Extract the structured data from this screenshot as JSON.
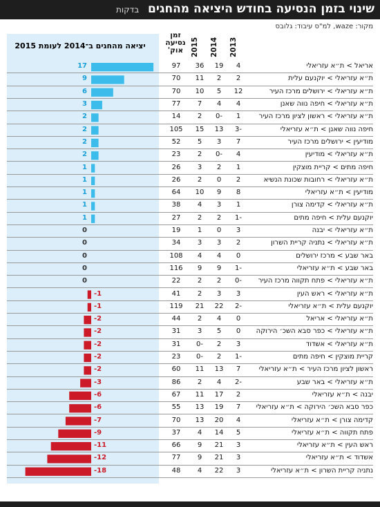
{
  "header": {
    "title": "שינוי בזמן הנסיעה בחודש היציאה מהחגים",
    "subtitle": "בדקות"
  },
  "source": "מקור: waze, למ\"ס  עיבוד: גלובס",
  "columns": {
    "y2013": "2013",
    "y2014": "2014",
    "y2015": "2015",
    "august": [
      "זמן",
      "נסיעה",
      "אוק'"
    ]
  },
  "colors": {
    "positive": "#3bbcea",
    "negative": "#cc1a28",
    "positive_text": "#1aa0d8",
    "negative_text": "#cc1a28",
    "panel": "#dbeefa"
  },
  "chart_data": {
    "type": "bar",
    "title": "יציאה מהחגים ב־2014 לעומת 2015",
    "orientation": "horizontal",
    "xlim": [
      -18,
      17
    ],
    "rows": [
      {
        "route": "אריאל > ת״א עזריאלי",
        "y2013": "4",
        "y2014": "19",
        "y2015": "36",
        "oct": "97",
        "change": 17
      },
      {
        "route": "ת״א עזריאלי > יוקנעם עלית",
        "y2013": "2",
        "y2014": "2",
        "y2015": "11",
        "oct": "70",
        "change": 9
      },
      {
        "route": "ת״א עזריאלי > ירושלים מרכז העיר",
        "y2013": "12",
        "y2014": "5",
        "y2015": "10",
        "oct": "70",
        "change": 6
      },
      {
        "route": "ת״א עזריאלי > חיפה נווה שאנן",
        "y2013": "4",
        "y2014": "4",
        "y2015": "7",
        "oct": "77",
        "change": 3
      },
      {
        "route": "ת״א עזריאלי > ראשון לציון מרכז העיר",
        "y2013": "1",
        "y2014": "0-",
        "y2015": "2",
        "oct": "14",
        "change": 2
      },
      {
        "route": "חיפה נווה שאנן > ת״א עזריאלי",
        "y2013": "3-",
        "y2014": "13",
        "y2015": "15",
        "oct": "105",
        "change": 2
      },
      {
        "route": "מודיעין > ירושלים מרכז העיר",
        "y2013": "7",
        "y2014": "3",
        "y2015": "5",
        "oct": "52",
        "change": 2
      },
      {
        "route": "ת״א עזריאלי > מודיעין",
        "y2013": "4",
        "y2014": "0-",
        "y2015": "2",
        "oct": "23",
        "change": 2
      },
      {
        "route": "חיפה מתים > קריית מוצקין",
        "y2013": "1",
        "y2014": "2",
        "y2015": "3",
        "oct": "26",
        "change": 1
      },
      {
        "route": "ת״א עזריאלי > רחובות שכונת הנשיא",
        "y2013": "2",
        "y2014": "0",
        "y2015": "2",
        "oct": "26",
        "change": 1
      },
      {
        "route": "מודיעין > ת״א עזריאלי",
        "y2013": "8",
        "y2014": "9",
        "y2015": "10",
        "oct": "64",
        "change": 1
      },
      {
        "route": "ת״א עזריאלי > קדימה צורן",
        "y2013": "1",
        "y2014": "3",
        "y2015": "4",
        "oct": "38",
        "change": 1
      },
      {
        "route": "יוקנעם עלית > חיפה מתים",
        "y2013": "1-",
        "y2014": "2",
        "y2015": "2",
        "oct": "27",
        "change": 1
      },
      {
        "route": "ת״א עזריאלי > יבנה",
        "y2013": "3",
        "y2014": "0",
        "y2015": "1",
        "oct": "19",
        "change": 0
      },
      {
        "route": "ת״א עזריאלי > נתניה קריית השרון",
        "y2013": "2",
        "y2014": "3",
        "y2015": "3",
        "oct": "34",
        "change": 0
      },
      {
        "route": "באר שבע > מרכז ירושלים",
        "y2013": "0",
        "y2014": "4",
        "y2015": "4",
        "oct": "108",
        "change": 0
      },
      {
        "route": "באר שבע > ת״א עזריאלי",
        "y2013": "1-",
        "y2014": "9",
        "y2015": "9",
        "oct": "116",
        "change": 0
      },
      {
        "route": "ת״א עזריאלי > פתח תקווה מרכז העיר",
        "y2013": "0-",
        "y2014": "2",
        "y2015": "2",
        "oct": "22",
        "change": 0
      },
      {
        "route": "ת״א עזריאלי > ראש העין",
        "y2013": "3",
        "y2014": "3",
        "y2015": "2",
        "oct": "41",
        "change": -1
      },
      {
        "route": "יוקנעם עלית > ת״א עזריאלי",
        "y2013": "2-",
        "y2014": "22",
        "y2015": "21",
        "oct": "119",
        "change": -1
      },
      {
        "route": "ת״א עזריאלי > אריאל",
        "y2013": "0",
        "y2014": "4",
        "y2015": "2",
        "oct": "44",
        "change": -2
      },
      {
        "route": "ת״א עזריאלי > כפר סבא השכ׳ הירוקה",
        "y2013": "0",
        "y2014": "5",
        "y2015": "3",
        "oct": "31",
        "change": -2
      },
      {
        "route": "ת״א עזריאלי > אשדוד",
        "y2013": "3",
        "y2014": "2",
        "y2015": "0-",
        "oct": "31",
        "change": -2
      },
      {
        "route": "קריית מוצקין > חיפה מתים",
        "y2013": "1-",
        "y2014": "2",
        "y2015": "0-",
        "oct": "23",
        "change": -2
      },
      {
        "route": "ראשון לציון מרכז העיר > ת״א עזריאלי",
        "y2013": "7",
        "y2014": "13",
        "y2015": "11",
        "oct": "60",
        "change": -2
      },
      {
        "route": "ת״א עזריאלי > באר שבע",
        "y2013": "2-",
        "y2014": "4",
        "y2015": "2",
        "oct": "86",
        "change": -3
      },
      {
        "route": "יבנה > ת״א עזריאלי",
        "y2013": "2",
        "y2014": "17",
        "y2015": "11",
        "oct": "67",
        "change": -6
      },
      {
        "route": "כפר סבא השכ׳ הירוקה > ת״א עזריאלי",
        "y2013": "7",
        "y2014": "19",
        "y2015": "13",
        "oct": "55",
        "change": -6
      },
      {
        "route": "קדימה צורן > ת״א עזריאלי",
        "y2013": "4",
        "y2014": "20",
        "y2015": "13",
        "oct": "70",
        "change": -7
      },
      {
        "route": "פתח תקווה > ת״א עזריאלי",
        "y2013": "5",
        "y2014": "14",
        "y2015": "4",
        "oct": "37",
        "change": -9
      },
      {
        "route": "ראש העין > ת״א עזריאלי",
        "y2013": "3",
        "y2014": "21",
        "y2015": "9",
        "oct": "66",
        "change": -11
      },
      {
        "route": "אשדוד > ת״א עזריאלי",
        "y2013": "3",
        "y2014": "21",
        "y2015": "9",
        "oct": "77",
        "change": -12
      },
      {
        "route": "נתניה קריית השרון > ת״א עזריאלי",
        "y2013": "3",
        "y2014": "22",
        "y2015": "4",
        "oct": "48",
        "change": -18
      }
    ]
  }
}
